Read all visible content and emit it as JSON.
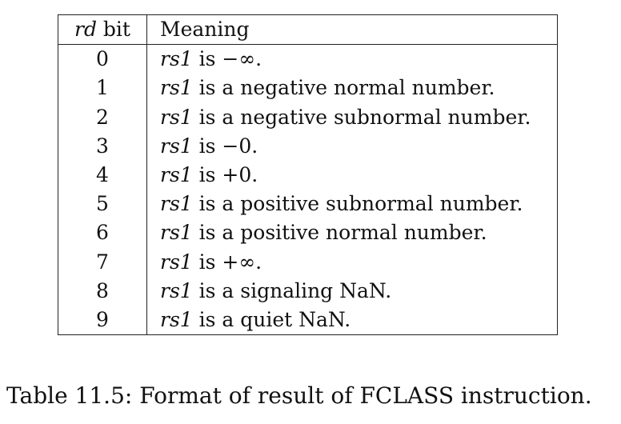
{
  "table": {
    "header": {
      "bit_italic": "rd",
      "bit_rest": " bit",
      "meaning": "Meaning"
    },
    "rows": [
      {
        "bit": "0",
        "subject": "rs1",
        "text": " is −∞."
      },
      {
        "bit": "1",
        "subject": "rs1",
        "text": " is a negative normal number."
      },
      {
        "bit": "2",
        "subject": "rs1",
        "text": " is a negative subnormal number."
      },
      {
        "bit": "3",
        "subject": "rs1",
        "text": " is −0."
      },
      {
        "bit": "4",
        "subject": "rs1",
        "text": " is +0."
      },
      {
        "bit": "5",
        "subject": "rs1",
        "text": " is a positive subnormal number."
      },
      {
        "bit": "6",
        "subject": "rs1",
        "text": " is a positive normal number."
      },
      {
        "bit": "7",
        "subject": "rs1",
        "text": " is +∞."
      },
      {
        "bit": "8",
        "subject": "rs1",
        "text": " is a signaling NaN."
      },
      {
        "bit": "9",
        "subject": "rs1",
        "text": " is a quiet NaN."
      }
    ]
  },
  "caption": "Table 11.5: Format of result of FCLASS instruction."
}
